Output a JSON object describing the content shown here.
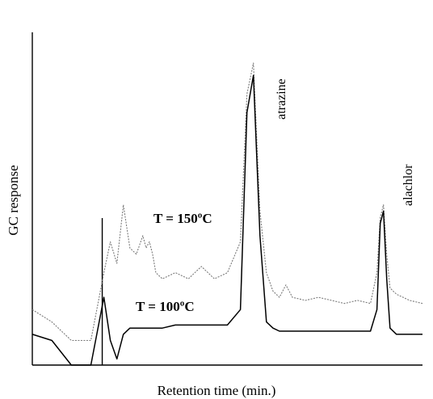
{
  "chart_data": {
    "type": "line",
    "title": "",
    "xlabel": "Retention time (min.)",
    "ylabel": "GC response",
    "x_ticks": "none",
    "y_ticks": "none",
    "grid": false,
    "legend": "none (traces labelled directly)",
    "x": [
      0,
      3,
      6,
      9,
      11,
      12,
      13,
      14,
      15,
      16,
      17,
      17.5,
      18,
      18.5,
      19,
      20,
      22,
      24,
      26,
      28,
      30,
      32,
      33,
      34,
      35,
      36,
      37,
      38,
      39,
      40,
      42,
      44,
      46,
      48,
      50,
      52,
      53,
      53.5,
      54,
      54.5,
      55,
      56,
      58,
      60
    ],
    "series": [
      {
        "name": "T = 150ºC",
        "color": "#7a7a7a",
        "values": [
          18,
          14,
          8,
          8,
          30,
          40,
          33,
          52,
          38,
          36,
          42,
          38,
          40,
          36,
          30,
          28,
          30,
          28,
          32,
          28,
          30,
          40,
          88,
          98,
          50,
          30,
          24,
          22,
          26,
          22,
          21,
          22,
          21,
          20,
          21,
          20,
          30,
          48,
          52,
          36,
          25,
          23,
          21,
          20
        ]
      },
      {
        "name": "T = 100ºC",
        "color": "#000000",
        "values": [
          10,
          8,
          0,
          0,
          22,
          8,
          2,
          10,
          12,
          12,
          12,
          12,
          12,
          12,
          12,
          12,
          13,
          13,
          13,
          13,
          13,
          18,
          82,
          94,
          42,
          14,
          12,
          11,
          11,
          11,
          11,
          11,
          11,
          11,
          11,
          11,
          18,
          46,
          50,
          28,
          12,
          10,
          10,
          10
        ]
      }
    ],
    "peak_labels": [
      "atrazine",
      "alachlor"
    ],
    "marker_line_x": 11
  }
}
